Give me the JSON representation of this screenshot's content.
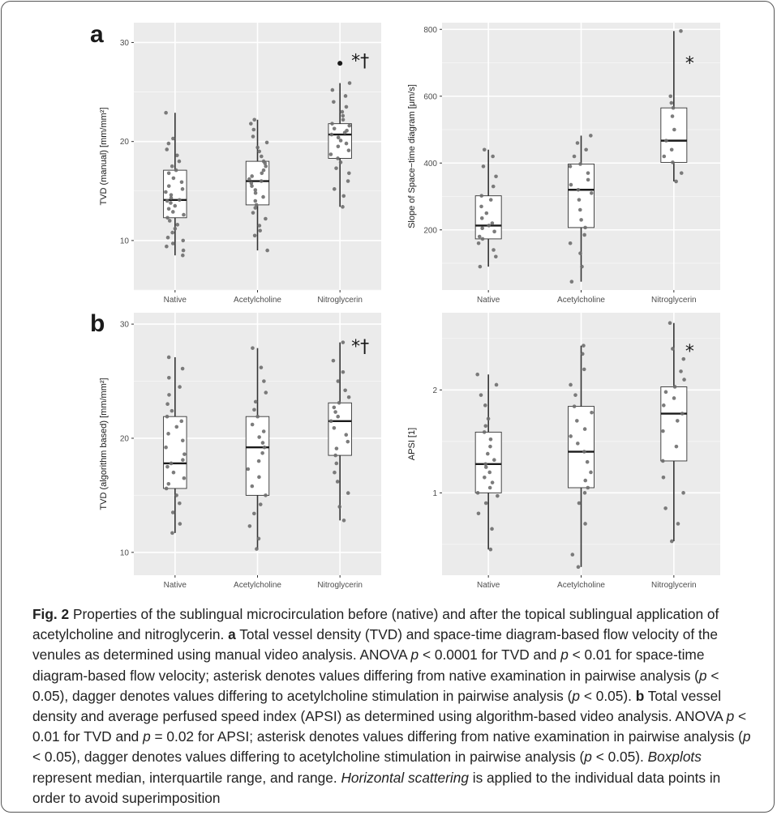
{
  "chart_data": [
    {
      "type": "box",
      "panel_label": "a",
      "ylabel": "TVD (manual) [mm/mm²]",
      "categories": [
        "Native",
        "Acetylcholine",
        "Nitroglycerin"
      ],
      "ylim": [
        5,
        32
      ],
      "yticks": [
        10,
        20,
        30
      ],
      "grid": true,
      "boxes": [
        {
          "min": 8.5,
          "q1": 12.3,
          "median": 14.1,
          "q3": 17.1,
          "max": 22.9,
          "outliers": []
        },
        {
          "min": 9.0,
          "q1": 13.6,
          "median": 16.0,
          "q3": 18.0,
          "max": 22.2,
          "outliers": []
        },
        {
          "min": 13.4,
          "q1": 18.3,
          "median": 20.7,
          "q3": 21.8,
          "max": 25.9,
          "outliers": [
            27.9
          ]
        }
      ],
      "points": [
        [
          8.5,
          9.0,
          9.4,
          9.7,
          10.0,
          10.3,
          10.8,
          11.2,
          11.6,
          12.0,
          12.3,
          12.6,
          12.9,
          13.2,
          13.5,
          13.8,
          14.0,
          14.1,
          14.3,
          14.6,
          14.9,
          15.2,
          15.5,
          15.9,
          16.3,
          16.8,
          17.1,
          17.5,
          18.0,
          18.6,
          19.2,
          19.8,
          20.3,
          22.9
        ],
        [
          9.0,
          10.5,
          11.0,
          11.5,
          12.2,
          12.8,
          13.3,
          13.6,
          14.0,
          14.4,
          14.8,
          15.1,
          15.5,
          15.8,
          16.0,
          16.2,
          16.5,
          16.8,
          17.1,
          17.5,
          17.8,
          18.0,
          18.5,
          19.0,
          19.4,
          19.9,
          20.5,
          21.2,
          21.8,
          22.2
        ],
        [
          13.4,
          14.5,
          15.2,
          16.0,
          16.8,
          17.3,
          17.9,
          18.3,
          18.7,
          19.1,
          19.5,
          19.8,
          20.1,
          20.4,
          20.7,
          20.9,
          21.1,
          21.3,
          21.6,
          21.8,
          22.2,
          22.6,
          23.0,
          23.5,
          24.0,
          24.6,
          25.2,
          25.9
        ]
      ],
      "annotations": [
        {
          "category": "Nitroglycerin",
          "text": "*†",
          "y": 28.2
        }
      ]
    },
    {
      "type": "box",
      "panel_label": "",
      "ylabel": "Slope of Space−time diagram [μm/s]",
      "categories": [
        "Native",
        "Acetylcholine",
        "Nitroglycerin"
      ],
      "ylim": [
        20,
        820
      ],
      "yticks": [
        200,
        400,
        600,
        800
      ],
      "grid": true,
      "boxes": [
        {
          "min": 90,
          "q1": 173,
          "median": 213,
          "q3": 302,
          "max": 440,
          "outliers": []
        },
        {
          "min": 45,
          "q1": 207,
          "median": 320,
          "q3": 397,
          "max": 482,
          "outliers": []
        },
        {
          "min": 345,
          "q1": 402,
          "median": 467,
          "q3": 565,
          "max": 795,
          "outliers": []
        }
      ],
      "points": [
        [
          90,
          120,
          140,
          160,
          173,
          180,
          195,
          205,
          213,
          220,
          235,
          250,
          270,
          290,
          302,
          330,
          360,
          390,
          420,
          440
        ],
        [
          45,
          90,
          130,
          160,
          185,
          207,
          230,
          260,
          290,
          310,
          320,
          335,
          350,
          370,
          390,
          397,
          420,
          440,
          460,
          482
        ],
        [
          345,
          370,
          402,
          420,
          440,
          467,
          500,
          540,
          565,
          580,
          600,
          795
        ]
      ],
      "annotations": [
        {
          "category": "Nitroglycerin",
          "text": "*",
          "y": 700
        }
      ]
    },
    {
      "type": "box",
      "panel_label": "b",
      "ylabel": "TVD (algorithm based) [mm/mm²]",
      "categories": [
        "Native",
        "Acetylcholine",
        "Nitroglycerin"
      ],
      "ylim": [
        8,
        31
      ],
      "yticks": [
        10,
        20,
        30
      ],
      "grid": true,
      "boxes": [
        {
          "min": 11.7,
          "q1": 15.6,
          "median": 17.8,
          "q3": 21.9,
          "max": 27.1,
          "outliers": []
        },
        {
          "min": 10.3,
          "q1": 15.0,
          "median": 19.2,
          "q3": 21.9,
          "max": 27.9,
          "outliers": []
        },
        {
          "min": 12.8,
          "q1": 18.5,
          "median": 21.5,
          "q3": 23.1,
          "max": 28.4,
          "outliers": []
        }
      ],
      "points": [
        [
          11.7,
          12.5,
          13.5,
          14.3,
          15.0,
          15.6,
          16.0,
          16.5,
          17.0,
          17.5,
          17.8,
          18.1,
          18.6,
          19.2,
          19.8,
          20.4,
          21.0,
          21.5,
          21.9,
          22.4,
          23.0,
          23.8,
          24.5,
          25.3,
          26.1,
          27.1
        ],
        [
          10.3,
          11.2,
          12.3,
          13.4,
          14.2,
          15.0,
          15.8,
          16.6,
          17.3,
          18.0,
          18.7,
          19.2,
          19.6,
          20.1,
          20.6,
          21.2,
          21.9,
          22.5,
          23.2,
          24.0,
          25.0,
          26.2,
          27.9
        ],
        [
          12.8,
          14.0,
          15.2,
          16.2,
          17.0,
          17.8,
          18.5,
          19.1,
          19.7,
          20.3,
          20.9,
          21.5,
          21.9,
          22.3,
          22.7,
          23.1,
          23.6,
          24.2,
          25.0,
          25.8,
          26.8,
          28.4
        ]
      ],
      "annotations": [
        {
          "category": "Nitroglycerin",
          "text": "*†",
          "y": 28.1
        }
      ]
    },
    {
      "type": "box",
      "panel_label": "",
      "ylabel": "APSI [1]",
      "categories": [
        "Native",
        "Acetylcholine",
        "Nitroglycerin"
      ],
      "ylim": [
        0.2,
        2.75
      ],
      "yticks": [
        1,
        2
      ],
      "grid": true,
      "boxes": [
        {
          "min": 0.45,
          "q1": 1.0,
          "median": 1.28,
          "q3": 1.59,
          "max": 2.15,
          "outliers": []
        },
        {
          "min": 0.28,
          "q1": 1.05,
          "median": 1.4,
          "q3": 1.84,
          "max": 2.43,
          "outliers": []
        },
        {
          "min": 0.53,
          "q1": 1.31,
          "median": 1.77,
          "q3": 2.03,
          "max": 2.65,
          "outliers": []
        }
      ],
      "points": [
        [
          0.45,
          0.65,
          0.8,
          0.9,
          0.97,
          1.0,
          1.05,
          1.1,
          1.15,
          1.2,
          1.25,
          1.28,
          1.32,
          1.38,
          1.45,
          1.52,
          1.59,
          1.65,
          1.72,
          1.85,
          1.95,
          2.05,
          2.15
        ],
        [
          0.28,
          0.4,
          0.7,
          0.9,
          1.0,
          1.05,
          1.12,
          1.2,
          1.3,
          1.4,
          1.48,
          1.55,
          1.62,
          1.7,
          1.78,
          1.84,
          1.95,
          2.05,
          2.2,
          2.35,
          2.43
        ],
        [
          0.53,
          0.7,
          0.85,
          1.0,
          1.15,
          1.31,
          1.45,
          1.6,
          1.7,
          1.77,
          1.85,
          1.92,
          1.98,
          2.03,
          2.1,
          2.18,
          2.3,
          2.4,
          2.65
        ]
      ],
      "annotations": [
        {
          "category": "Nitroglycerin",
          "text": "*",
          "y": 2.38
        }
      ]
    }
  ],
  "caption": {
    "fig_label": "Fig. 2",
    "p1": " Properties of the sublingual microcirculation before (native) and after the topical sublingual application of acetylcholine and nitroglycerin. ",
    "a_label": "a",
    "p2": " Total vessel density (TVD) and space-time diagram-based flow velocity of the venules as determined using manual video analysis. ANOVA ",
    "p_sym": "p",
    "p3": " < 0.0001 for TVD and ",
    "p4": " < 0.01 for space-time diagram-based flow velocity; asterisk denotes values differing from native examination in pairwise analysis (",
    "p5": " < 0.05), dagger denotes values differing to acetylcholine stimulation in pairwise analysis (",
    "p6": " < 0.05). ",
    "b_label": "b",
    "p7": " Total vessel density and average perfused speed index (APSI) as determined using algorithm-based video analysis. ANOVA ",
    "p8": " < 0.01 for TVD and ",
    "p9": " = 0.02 for APSI; asterisk denotes values differing from native examination in pairwise analysis (",
    "p10": " < 0.05), dagger denotes values differing to acetylcholine stimulation in pairwise analysis (",
    "p11": " < 0.05). ",
    "boxplots": "Boxplots",
    "p12": " represent median, interquartile range, and range. ",
    "hscatter": "Horizontal scattering",
    "p13": " is applied to the individual data points in order to avoid superimposition"
  }
}
